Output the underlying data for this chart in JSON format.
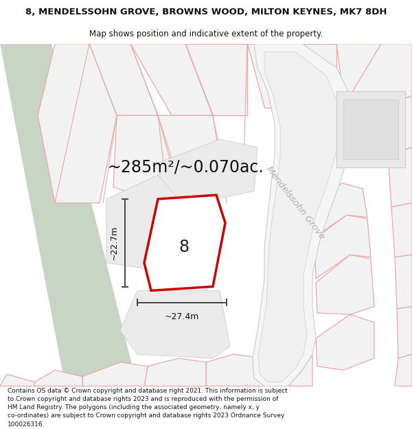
{
  "title": "8, MENDELSSOHN GROVE, BROWNS WOOD, MILTON KEYNES, MK7 8DH",
  "subtitle": "Map shows position and indicative extent of the property.",
  "area_text": "~285m²/~0.070ac.",
  "width_text": "~27.4m",
  "height_text": "~22.7m",
  "label_8": "8",
  "road_label": "Mendelssohn Grove",
  "footer": "Contains OS data © Crown copyright and database right 2021. This information is subject\nto Crown copyright and database rights 2023 and is reproduced with the permission of\nHM Land Registry. The polygons (including the associated geometry, namely x, y\nco-ordinates) are subject to Crown copyright and database rights 2023 Ordnance Survey\n100026316.",
  "title_fontsize": 9.5,
  "subtitle_fontsize": 8.5,
  "area_fontsize": 17,
  "label_fontsize": 17,
  "dim_fontsize": 9,
  "road_fontsize": 9.5,
  "footer_fontsize": 6.5,
  "bg_color": "#ffffff",
  "map_bg": "#f9f9f9",
  "green_color": "#c8d5c5",
  "plot_fill": "#f2f2f2",
  "plot_edge": "#e8a8a8",
  "highlight_edge": "#cc0000",
  "inner_fill": "#e0e0e0",
  "inner_edge": "#cccccc",
  "road_fill": "#f5f5f5",
  "road_edge": "#cccccc",
  "dim_color": "#444444",
  "road_text_color": "#b0b0b0",
  "text_color": "#111111"
}
